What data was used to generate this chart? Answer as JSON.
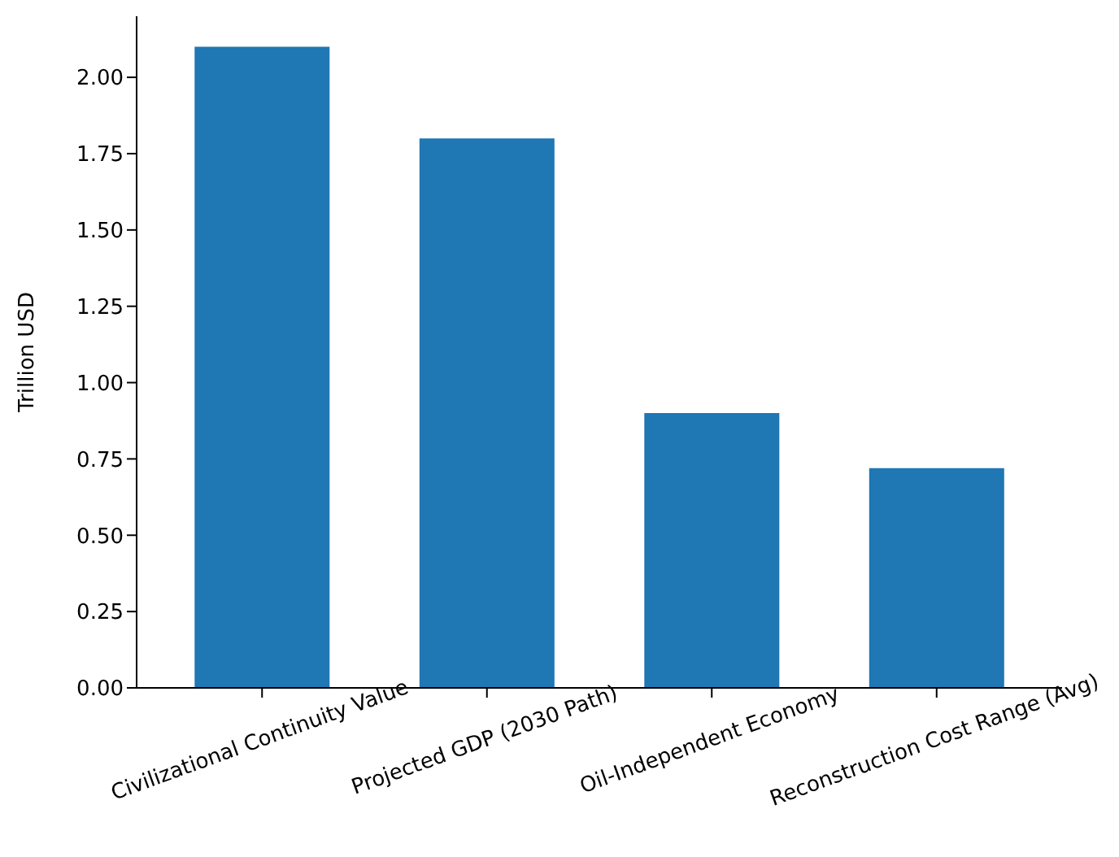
{
  "chart_data": {
    "type": "bar",
    "ylabel": "Trillion USD",
    "categories": [
      "Civilizational Continuity Value",
      "Projected GDP (2030 Path)",
      "Oil-Independent Economy",
      "Reconstruction Cost Range (Avg)"
    ],
    "values": [
      2.1,
      1.8,
      0.9,
      0.72
    ],
    "color": "#1f77b4",
    "ylim": [
      0,
      2.2
    ],
    "yticks": [
      {
        "value": 0,
        "label": "0.00"
      },
      {
        "value": 0.25,
        "label": "0.25"
      },
      {
        "value": 0.5,
        "label": "0.50"
      },
      {
        "value": 0.75,
        "label": "0.75"
      },
      {
        "value": 1,
        "label": "1.00"
      },
      {
        "value": 1.25,
        "label": "1.25"
      },
      {
        "value": 1.5,
        "label": "1.50"
      },
      {
        "value": 1.75,
        "label": "1.75"
      },
      {
        "value": 2,
        "label": "2.00"
      }
    ],
    "grid": false,
    "legend": false
  }
}
